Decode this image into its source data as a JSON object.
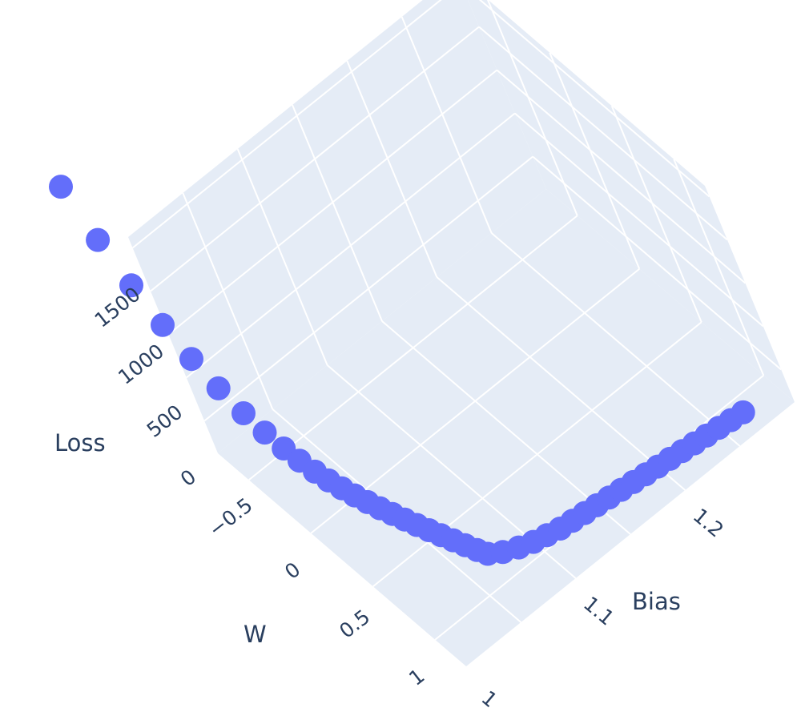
{
  "chart_data": {
    "type": "scatter3d",
    "series": [
      {
        "color": "#636efa",
        "marker": "circle",
        "w": [
          -1.33,
          -1.2,
          -1.07,
          -0.94,
          -0.81,
          -0.68,
          -0.55,
          -0.44,
          -0.34,
          -0.26,
          -0.18,
          -0.11,
          -0.04,
          0.03,
          0.1,
          0.17,
          0.24,
          0.31,
          0.38,
          0.45,
          0.52,
          0.59,
          0.66,
          0.73,
          0.79,
          0.84,
          0.88,
          0.91,
          0.93,
          0.95,
          0.96,
          0.97,
          0.98,
          0.99,
          1.0,
          1.01,
          1.02,
          1.03,
          1.04,
          1.05,
          1.06,
          1.07,
          1.08,
          1.09,
          1.1
        ],
        "bias": [
          1.0,
          1.003,
          1.006,
          1.009,
          1.012,
          1.015,
          1.018,
          1.021,
          1.024,
          1.027,
          1.03,
          1.033,
          1.036,
          1.039,
          1.042,
          1.045,
          1.048,
          1.051,
          1.054,
          1.057,
          1.06,
          1.063,
          1.066,
          1.069,
          1.072,
          1.08,
          1.09,
          1.1,
          1.11,
          1.12,
          1.13,
          1.14,
          1.15,
          1.16,
          1.17,
          1.18,
          1.19,
          1.2,
          1.21,
          1.22,
          1.23,
          1.24,
          1.25,
          1.26,
          1.27
        ],
        "loss": [
          1800,
          1430,
          1130,
          880,
          680,
          520,
          400,
          310,
          240,
          185,
          140,
          105,
          78,
          58,
          42,
          30,
          22,
          15,
          10,
          6,
          4,
          2,
          1,
          1,
          1,
          1,
          1,
          1,
          1,
          1,
          1,
          1,
          1,
          1,
          1,
          1,
          1,
          1,
          1,
          1,
          1,
          1,
          1,
          1,
          1
        ]
      }
    ],
    "axes": {
      "x": {
        "title": "W",
        "ticks": [
          "−0.5",
          "0",
          "0.5",
          "1"
        ],
        "tick_values": [
          -0.5,
          0,
          0.5,
          1
        ]
      },
      "y": {
        "title": "Bias",
        "ticks": [
          "1",
          "1.1",
          "1.2"
        ],
        "tick_values": [
          1.0,
          1.1,
          1.2
        ]
      },
      "z": {
        "title": "Loss",
        "ticks": [
          "0",
          "500",
          "1000",
          "1500"
        ],
        "tick_values": [
          0,
          500,
          1000,
          1500
        ]
      }
    },
    "background_color": "#e5ecf6",
    "grid_color": "#ffffff",
    "grid": true,
    "legend": false
  }
}
